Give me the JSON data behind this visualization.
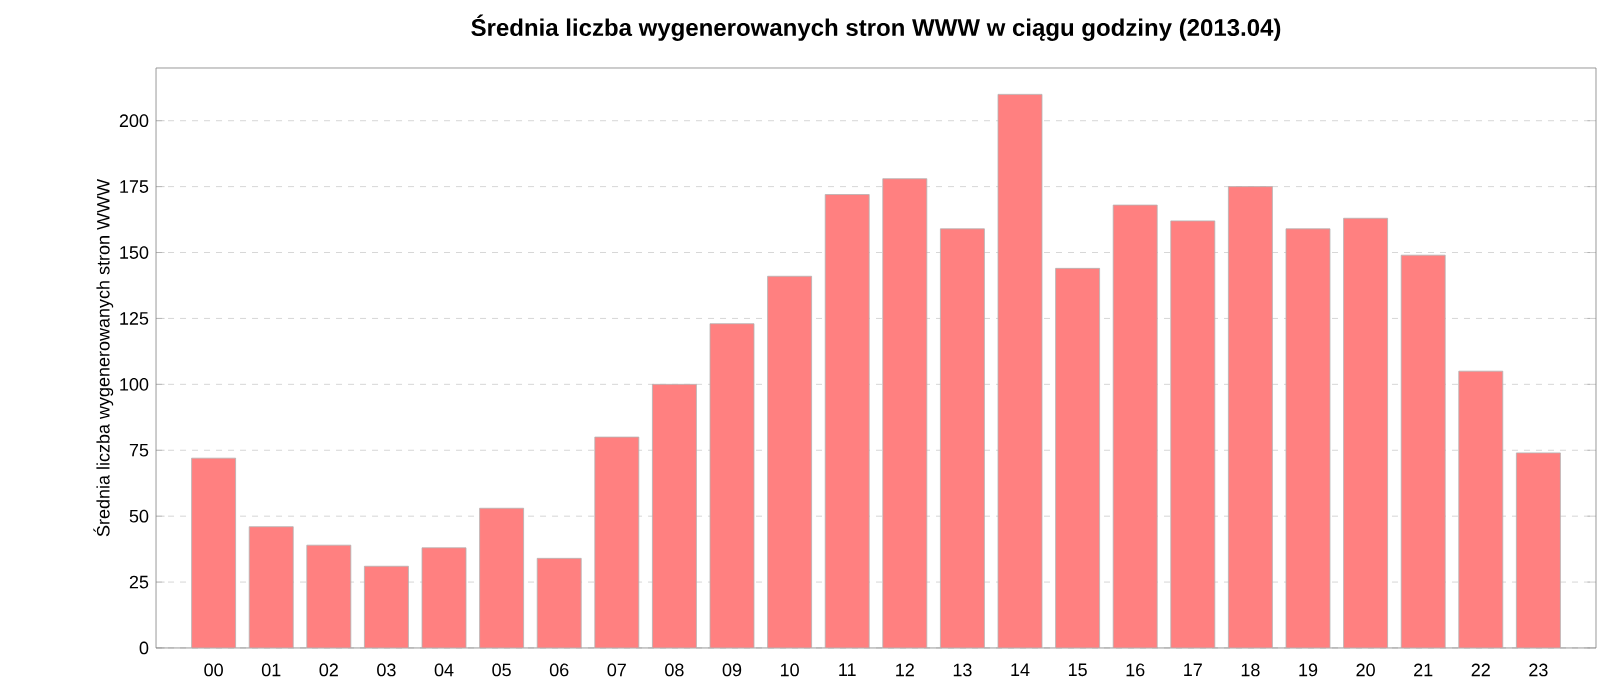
{
  "chart_data": {
    "type": "bar",
    "title": "Średnia liczba wygenerowanych stron WWW w ciągu godziny (2013.04)",
    "ylabel": "Średnia liczba wygenerowanych stron WWW",
    "categories": [
      "00",
      "01",
      "02",
      "03",
      "04",
      "05",
      "06",
      "07",
      "08",
      "09",
      "10",
      "11",
      "12",
      "13",
      "14",
      "15",
      "16",
      "17",
      "18",
      "19",
      "20",
      "21",
      "22",
      "23"
    ],
    "values": [
      72,
      46,
      39,
      31,
      38,
      53,
      34,
      80,
      100,
      123,
      141,
      172,
      178,
      159,
      210,
      144,
      168,
      162,
      175,
      159,
      163,
      149,
      105,
      74
    ],
    "color": "#ff8080",
    "ylim": [
      0,
      220
    ],
    "yticks": [
      0,
      25,
      50,
      75,
      100,
      125,
      150,
      175,
      200
    ],
    "grid": "y"
  }
}
